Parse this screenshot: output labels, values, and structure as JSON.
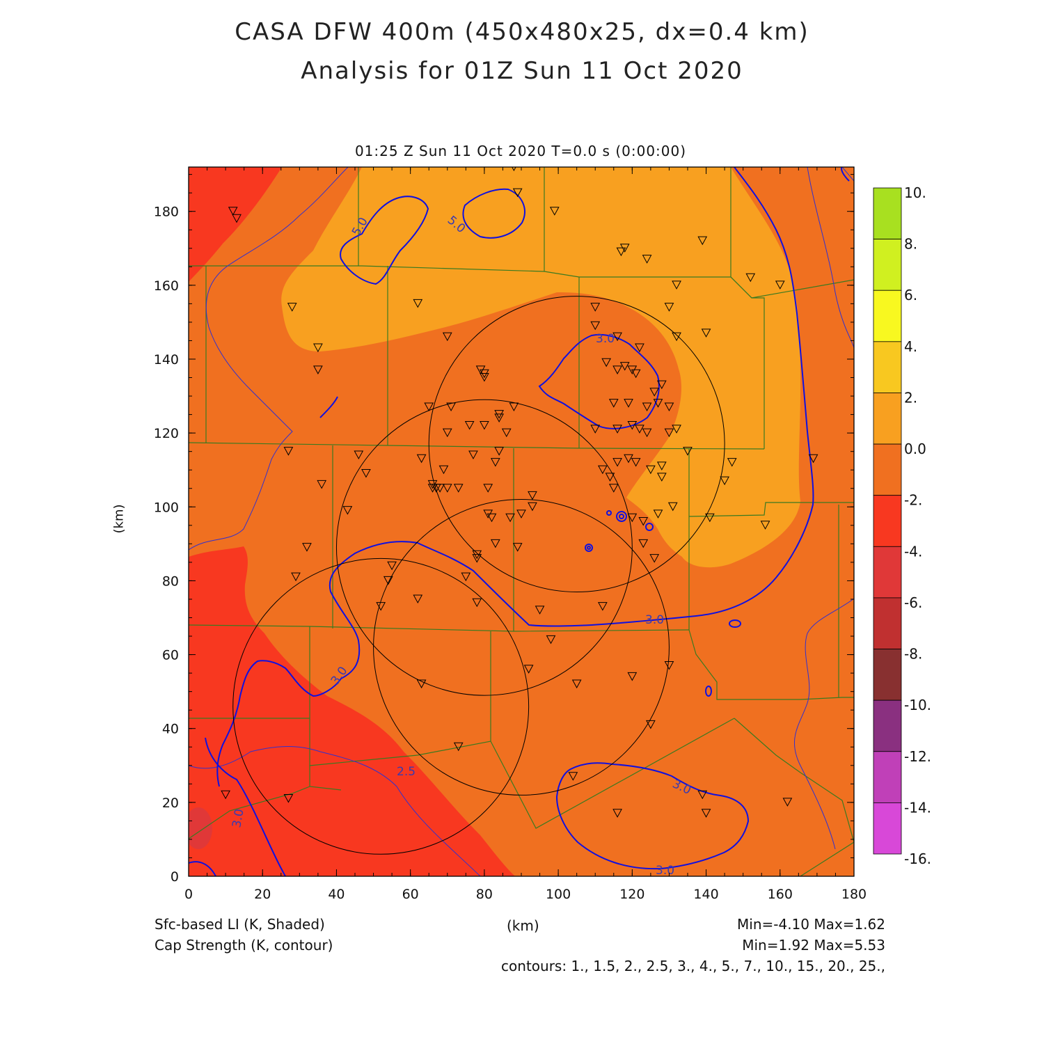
{
  "title_line1": "CASA DFW 400m (450x480x25, dx=0.4 km)",
  "title_line2": "Analysis for 01Z Sun 11 Oct 2020",
  "subtitle": "01:25 Z Sun 11 Oct 2020   T=0.0 s (0:00:00)",
  "axes": {
    "x_unit": "(km)",
    "y_unit": "(km)",
    "x_ticks": [
      "0",
      "20",
      "40",
      "60",
      "80",
      "100",
      "120",
      "140",
      "160",
      "180"
    ],
    "y_ticks": [
      "0",
      "20",
      "40",
      "60",
      "80",
      "100",
      "120",
      "140",
      "160",
      "180"
    ],
    "xlim": [
      0,
      180
    ],
    "ylim": [
      0,
      192
    ]
  },
  "colorbar": {
    "labels": [
      "10.",
      "8.",
      "6.",
      "4.",
      "2.",
      "0.0",
      "-2.",
      "-4.",
      "-6.",
      "-8.",
      "-10.",
      "-12.",
      "-14.",
      "-16."
    ],
    "colors": [
      "#a8e020",
      "#d0f020",
      "#f8f820",
      "#f8c820",
      "#f8a020",
      "#f07020",
      "#f83820",
      "#e03838",
      "#c03030",
      "#883030",
      "#8a3080",
      "#c040b8",
      "#d848d8"
    ]
  },
  "legend": {
    "field1": "Sfc-based LI (K, Shaded)",
    "field2": "Cap Strength (K, contour)",
    "stats1": "Min=-4.10 Max=1.62",
    "stats2": "Min=1.92 Max=5.53",
    "contours": "contours: 1., 1.5, 2., 2.5, 3., 4., 5., 7., 10., 15., 20., 25.,"
  },
  "contour_labels": [
    "5.0",
    "5.0",
    "3.0",
    "3.0",
    "3.0",
    "2.5",
    "3.0",
    "3.0",
    "3.0"
  ],
  "colors": {
    "shade_minus2_0": "#f07020",
    "shade_0_2": "#f8a020",
    "shade_minus4_minus2": "#f83820",
    "shade_minus6_minus4": "#e03838",
    "contour": "#1010e0",
    "county": "#3a7a20",
    "range_ring": "#000000"
  },
  "chart_data": {
    "type": "heatmap",
    "title": "CASA DFW 400m (450x480x25, dx=0.4 km)",
    "subtitle": "Analysis for 01Z Sun 11 Oct 2020",
    "xlabel": "(km)",
    "ylabel": "(km)",
    "xlim": [
      0,
      180
    ],
    "ylim": [
      0,
      192
    ],
    "shaded_field": {
      "name": "Sfc-based LI (K, Shaded)",
      "min": -4.1,
      "max": 1.62
    },
    "contour_field": {
      "name": "Cap Strength (K, contour)",
      "min": 1.92,
      "max": 5.53,
      "levels": [
        1,
        1.5,
        2,
        2.5,
        3,
        4,
        5,
        7,
        10,
        15,
        20,
        25
      ]
    },
    "radar_rings": [
      {
        "center": [
          105,
          117
        ],
        "radius": 40
      },
      {
        "center": [
          80,
          89
        ],
        "radius": 40
      },
      {
        "center": [
          90,
          62
        ],
        "radius": 40
      },
      {
        "center": [
          52,
          46
        ],
        "radius": 40
      }
    ],
    "stations": [
      [
        12,
        180
      ],
      [
        13,
        178
      ],
      [
        28,
        154
      ],
      [
        35,
        143
      ],
      [
        35,
        137
      ],
      [
        62,
        155
      ],
      [
        70,
        146
      ],
      [
        88,
        192
      ],
      [
        89,
        185
      ],
      [
        99,
        180
      ],
      [
        118,
        170
      ],
      [
        117,
        169
      ],
      [
        124,
        167
      ],
      [
        139,
        172
      ],
      [
        132,
        160
      ],
      [
        152,
        162
      ],
      [
        160,
        160
      ],
      [
        130,
        154
      ],
      [
        140,
        147
      ],
      [
        132,
        146
      ],
      [
        110,
        154
      ],
      [
        110,
        149
      ],
      [
        116,
        146
      ],
      [
        122,
        143
      ],
      [
        113,
        139
      ],
      [
        116,
        137
      ],
      [
        120,
        137
      ],
      [
        121,
        136
      ],
      [
        118,
        138
      ],
      [
        128,
        133
      ],
      [
        126,
        131
      ],
      [
        127,
        128
      ],
      [
        130,
        127
      ],
      [
        115,
        128
      ],
      [
        119,
        128
      ],
      [
        124,
        127
      ],
      [
        116,
        121
      ],
      [
        120,
        122
      ],
      [
        122,
        121
      ],
      [
        124,
        120
      ],
      [
        110,
        121
      ],
      [
        130,
        120
      ],
      [
        132,
        121
      ],
      [
        135,
        115
      ],
      [
        128,
        111
      ],
      [
        125,
        110
      ],
      [
        119,
        113
      ],
      [
        116,
        112
      ],
      [
        112,
        110
      ],
      [
        128,
        108
      ],
      [
        147,
        112
      ],
      [
        145,
        107
      ],
      [
        169,
        113
      ],
      [
        141,
        97
      ],
      [
        156,
        95
      ],
      [
        131,
        100
      ],
      [
        127,
        98
      ],
      [
        123,
        96
      ],
      [
        120,
        97
      ],
      [
        123,
        90
      ],
      [
        126,
        86
      ],
      [
        80,
        136
      ],
      [
        80,
        135
      ],
      [
        79,
        137
      ],
      [
        65,
        127
      ],
      [
        71,
        127
      ],
      [
        88,
        127
      ],
      [
        84,
        125
      ],
      [
        84,
        124
      ],
      [
        76,
        122
      ],
      [
        80,
        122
      ],
      [
        86,
        120
      ],
      [
        70,
        120
      ],
      [
        84,
        115
      ],
      [
        83,
        112
      ],
      [
        77,
        114
      ],
      [
        69,
        110
      ],
      [
        63,
        113
      ],
      [
        46,
        114
      ],
      [
        48,
        109
      ],
      [
        27,
        115
      ],
      [
        36,
        106
      ],
      [
        43,
        99
      ],
      [
        32,
        89
      ],
      [
        29,
        81
      ],
      [
        67,
        105
      ],
      [
        66,
        105
      ],
      [
        66,
        106
      ],
      [
        68,
        105
      ],
      [
        70,
        105
      ],
      [
        73,
        105
      ],
      [
        81,
        105
      ],
      [
        81,
        98
      ],
      [
        82,
        97
      ],
      [
        87,
        97
      ],
      [
        90,
        98
      ],
      [
        93,
        103
      ],
      [
        93,
        100
      ],
      [
        83,
        90
      ],
      [
        89,
        89
      ],
      [
        78,
        86
      ],
      [
        78,
        87
      ],
      [
        75,
        81
      ],
      [
        55,
        84
      ],
      [
        54,
        80
      ],
      [
        62,
        75
      ],
      [
        78,
        74
      ],
      [
        52,
        73
      ],
      [
        95,
        72
      ],
      [
        98,
        64
      ],
      [
        112,
        73
      ],
      [
        115,
        105
      ],
      [
        114,
        108
      ],
      [
        121,
        112
      ],
      [
        63,
        52
      ],
      [
        73,
        35
      ],
      [
        92,
        56
      ],
      [
        105,
        52
      ],
      [
        120,
        54
      ],
      [
        130,
        57
      ],
      [
        125,
        41
      ],
      [
        116,
        17
      ],
      [
        139,
        22
      ],
      [
        140,
        17
      ],
      [
        162,
        20
      ],
      [
        10,
        22
      ],
      [
        27,
        21
      ],
      [
        104,
        27
      ]
    ]
  }
}
